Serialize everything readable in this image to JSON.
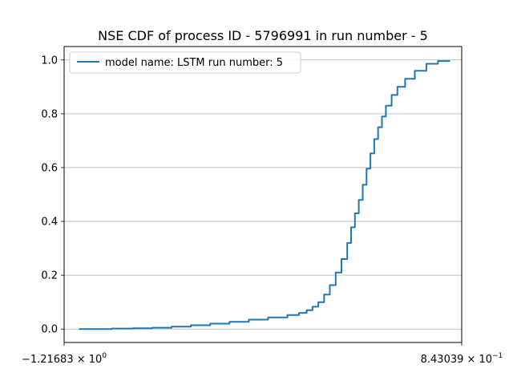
{
  "chart_data": {
    "type": "line",
    "title": "NSE CDF of process ID - 5796991 in run number - 5",
    "xlabel": "",
    "ylabel": "",
    "x_scale": "symlog",
    "xlim": [
      -1.21683,
      0.843039
    ],
    "ylim": [
      -0.05,
      1.05
    ],
    "x_tick_labels": [
      {
        "value": -1.21683,
        "mantissa": "−1.21683",
        "base": "10",
        "exponent": "0"
      },
      {
        "value": 0.843039,
        "mantissa": "8.43039",
        "base": "10",
        "exponent": "−1"
      }
    ],
    "y_ticks": [
      0.0,
      0.2,
      0.4,
      0.6,
      0.8,
      1.0
    ],
    "y_tick_labels": [
      "0.0",
      "0.2",
      "0.4",
      "0.6",
      "0.8",
      "1.0"
    ],
    "grid": "horizontal",
    "legend_position": "upper-left",
    "line_color": "#1f77b4",
    "series": [
      {
        "name": "model name: LSTM run number: 5",
        "x": [
          -1.14,
          -1.06,
          -0.97,
          -0.86,
          -0.76,
          -0.66,
          -0.56,
          -0.46,
          -0.36,
          -0.26,
          -0.16,
          -0.06,
          0.0,
          0.04,
          0.07,
          0.1,
          0.13,
          0.16,
          0.19,
          0.22,
          0.25,
          0.27,
          0.29,
          0.31,
          0.33,
          0.35,
          0.37,
          0.39,
          0.41,
          0.43,
          0.45,
          0.48,
          0.51,
          0.55,
          0.6,
          0.66,
          0.72,
          0.78
        ],
        "y": [
          0.0,
          0.0,
          0.002,
          0.003,
          0.005,
          0.009,
          0.014,
          0.02,
          0.027,
          0.035,
          0.043,
          0.052,
          0.06,
          0.07,
          0.083,
          0.1,
          0.128,
          0.163,
          0.21,
          0.26,
          0.32,
          0.378,
          0.43,
          0.48,
          0.536,
          0.596,
          0.653,
          0.706,
          0.75,
          0.79,
          0.83,
          0.87,
          0.9,
          0.93,
          0.96,
          0.986,
          0.996,
          0.998
        ]
      }
    ]
  }
}
